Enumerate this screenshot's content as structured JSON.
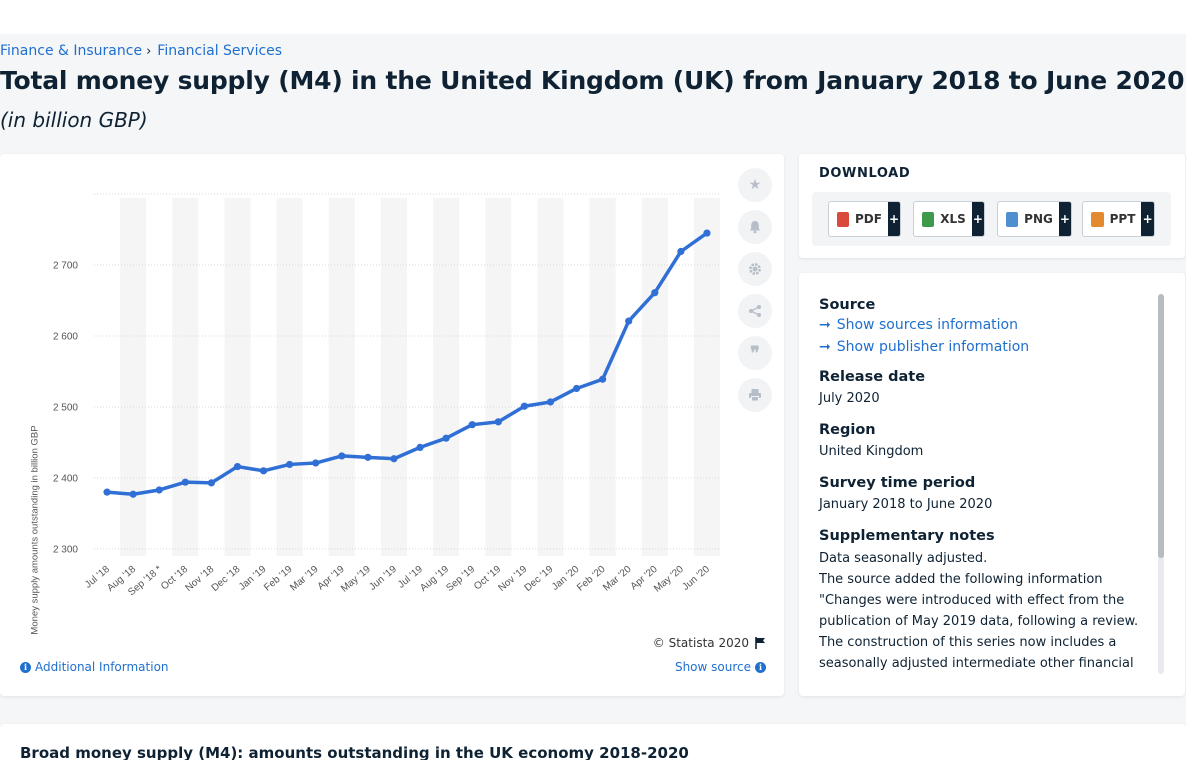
{
  "breadcrumb": {
    "item1": "Finance & Insurance",
    "item2": "Financial Services"
  },
  "title": "Total money supply (M4) in the United Kingdom (UK) from January 2018 to June 2020",
  "subtitle": "(in billion GBP)",
  "chart_data": {
    "type": "line",
    "ylabel": "Money supply amounts outstanding in billion GBP",
    "ylim": [
      2290,
      2800
    ],
    "yticks": [
      2300,
      2400,
      2500,
      2600,
      2700
    ],
    "ytick_labels": [
      "2 300",
      "2 400",
      "2 500",
      "2 600",
      "2 700"
    ],
    "grid": true,
    "categories": [
      "Jul '18",
      "Aug '18",
      "Sep '18 *",
      "Oct '18",
      "Nov '18",
      "Dec '18",
      "Jan '19",
      "Feb '19",
      "Mar '19",
      "Apr '19",
      "May '19",
      "Jun '19",
      "Jul '19",
      "Aug '19",
      "Sep '19",
      "Oct '19",
      "Nov '19",
      "Dec '19",
      "Jan '20",
      "Feb '20",
      "Mar '20",
      "Apr '20",
      "May '20",
      "Jun '20"
    ],
    "series": [
      {
        "values": [
          2380,
          2377,
          2383,
          2394,
          2393,
          2416,
          2410,
          2419,
          2421,
          2431,
          2429,
          2427,
          2443,
          2456,
          2475,
          2479,
          2501,
          2507,
          2526,
          2539,
          2621,
          2661,
          2719,
          2745
        ]
      }
    ],
    "colors": {
      "line": "#2f6fd6",
      "band": "#f5f5f5",
      "grid": "#d9d9d9"
    }
  },
  "chart_footer": {
    "copyright": "© Statista 2020",
    "additional": "Additional Information",
    "show_source": "Show source"
  },
  "download": {
    "title": "DOWNLOAD",
    "buttons": [
      {
        "label": "PDF",
        "color": "#d94a3d"
      },
      {
        "label": "XLS",
        "color": "#3d9a4a"
      },
      {
        "label": "PNG",
        "color": "#4f8fd0"
      },
      {
        "label": "PPT",
        "color": "#e38a2e"
      }
    ],
    "plus": "+"
  },
  "info": {
    "source_h": "Source",
    "show_sources": "Show sources information",
    "show_publisher": "Show publisher information",
    "release_h": "Release date",
    "release_v": "July 2020",
    "region_h": "Region",
    "region_v": "United Kingdom",
    "survey_h": "Survey time period",
    "survey_v": "January 2018 to June 2020",
    "notes_h": "Supplementary notes",
    "notes_1": "Data seasonally adjusted.",
    "notes_2": "The source added the following information \"Changes were introduced with effect from the publication of May 2019 data, following a review. The construction of this series now includes a seasonally adjusted intermediate other financial"
  },
  "bottom": {
    "title": "Broad money supply (M4): amounts outstanding in the UK economy 2018-2020"
  }
}
